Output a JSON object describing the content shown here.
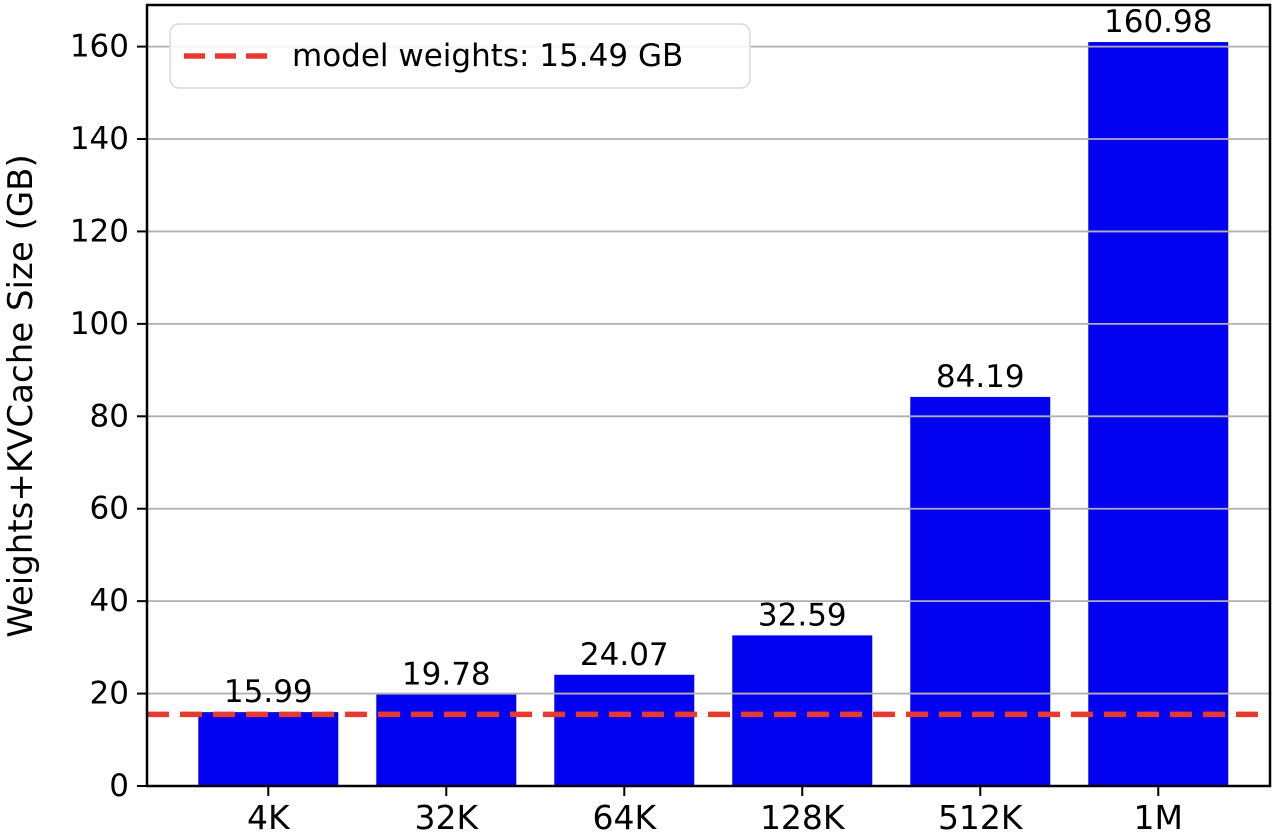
{
  "figure": {
    "background": "#ffffff"
  },
  "chart_data": {
    "type": "bar",
    "title": "",
    "xlabel": "",
    "ylabel": "Weights+KVCache Size (GB)",
    "categories": [
      "4K",
      "32K",
      "64K",
      "128K",
      "512K",
      "1M"
    ],
    "values": [
      15.99,
      19.78,
      24.07,
      32.59,
      84.19,
      160.98
    ],
    "bar_value_labels": [
      "15.99",
      "19.78",
      "24.07",
      "32.59",
      "84.19",
      "160.98"
    ],
    "yticks": [
      0,
      20,
      40,
      60,
      80,
      100,
      120,
      140,
      160
    ],
    "ytick_labels": [
      "0",
      "20",
      "40",
      "60",
      "80",
      "100",
      "120",
      "140",
      "160"
    ],
    "ylim": [
      0,
      169
    ],
    "grid": {
      "axis": "y",
      "above_bars": true
    },
    "reference_line": {
      "value": 15.49,
      "style": "dashed",
      "color": "#e8392e"
    },
    "legend": {
      "position": "upper-left",
      "entries": [
        {
          "label": "model weights: 15.49 GB",
          "marker": "dashed-line",
          "color": "#e8392e"
        }
      ]
    },
    "colors": {
      "bar": "#0202f0",
      "axis": "#000000",
      "text": "#000000",
      "grid": "#b0b0b0",
      "reference": "#e8392e",
      "legend_border": "#d9d9d9",
      "legend_background": "#ffffff"
    }
  }
}
